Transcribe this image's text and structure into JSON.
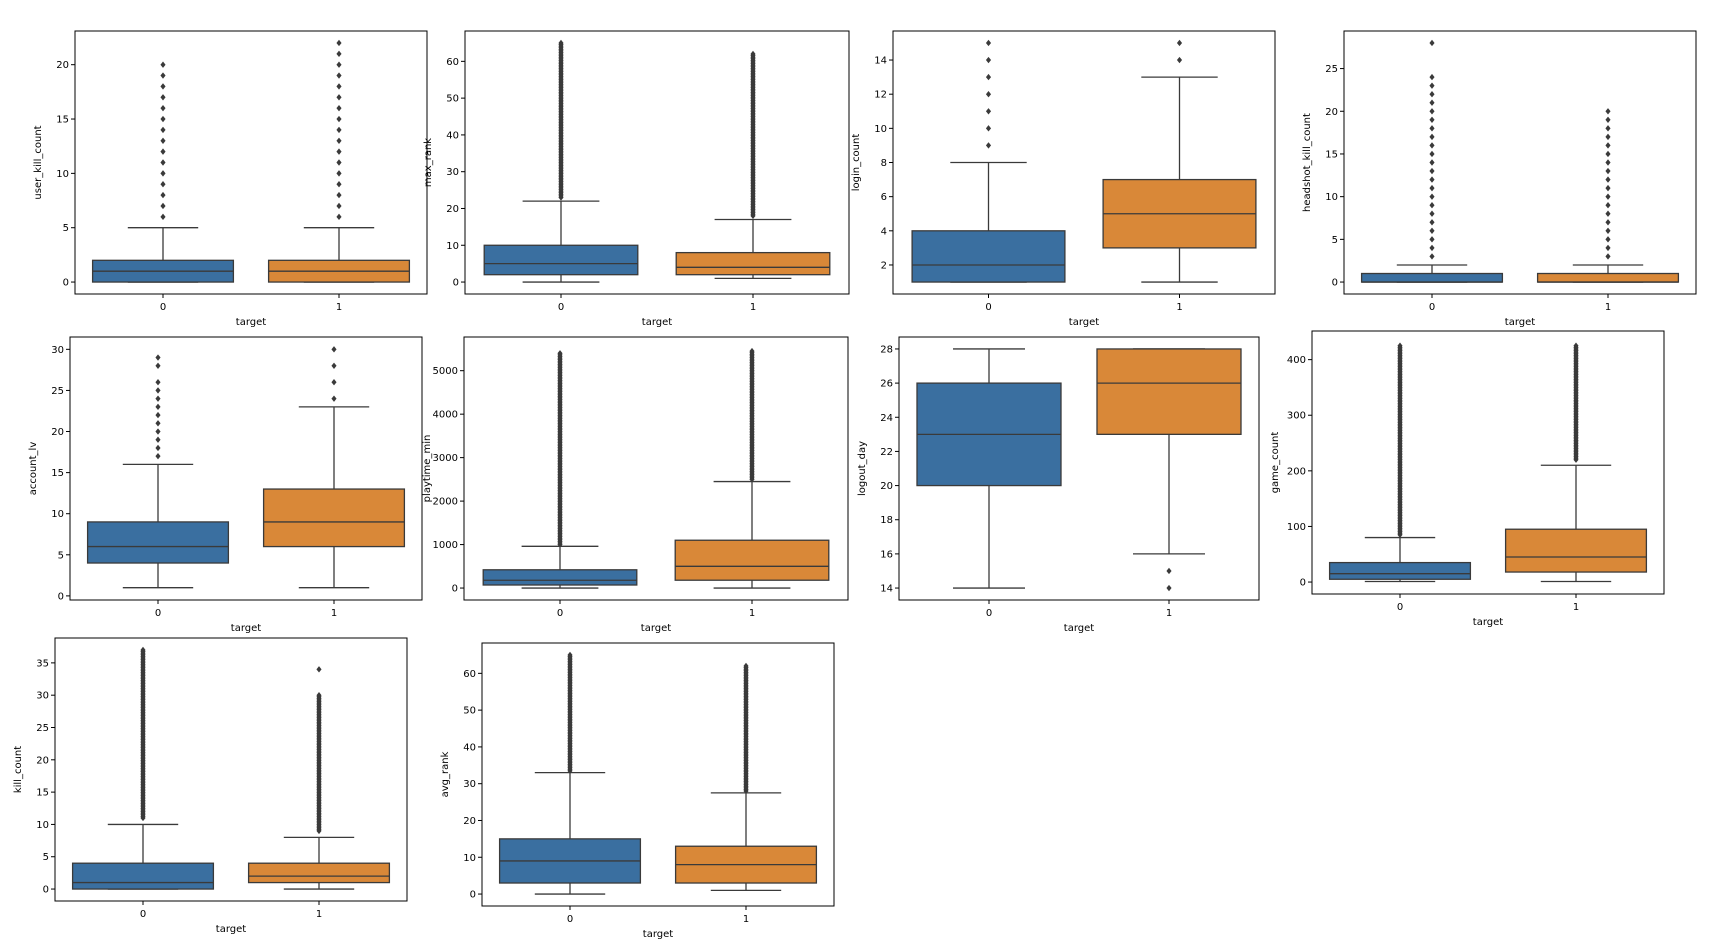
{
  "colors": {
    "group0": "#3a6fa0",
    "group1": "#d98838",
    "line": "#3a3a3a",
    "outlier": "#3a3a3a"
  },
  "chart_data": [
    {
      "type": "boxplot",
      "ylabel": "user_kill_count",
      "xlabel": "target",
      "categories": [
        "0",
        "1"
      ],
      "ylim": [
        -1.1,
        23.1
      ],
      "yticks": [
        0,
        5,
        10,
        15,
        20
      ],
      "boxes": [
        {
          "whisker_low": 0,
          "q1": 0,
          "median": 1,
          "q3": 2,
          "whisker_high": 5,
          "outliers": [
            6,
            7,
            8,
            9,
            10,
            11,
            12,
            13,
            14,
            15,
            16,
            17,
            18,
            19,
            20
          ]
        },
        {
          "whisker_low": 0,
          "q1": 0,
          "median": 1,
          "q3": 2,
          "whisker_high": 5,
          "outliers": [
            6,
            7,
            8,
            9,
            10,
            11,
            12,
            13,
            14,
            15,
            16,
            17,
            18,
            19,
            20,
            21,
            22
          ]
        }
      ]
    },
    {
      "type": "boxplot",
      "ylabel": "max_rank",
      "xlabel": "target",
      "categories": [
        "0",
        "1"
      ],
      "ylim": [
        -3.25,
        68.25
      ],
      "yticks": [
        0,
        10,
        20,
        30,
        40,
        50,
        60
      ],
      "boxes": [
        {
          "whisker_low": 0,
          "q1": 2,
          "median": 5,
          "q3": 10,
          "whisker_high": 22,
          "outliers_range": [
            23,
            65
          ]
        },
        {
          "whisker_low": 1,
          "q1": 2,
          "median": 4,
          "q3": 8,
          "whisker_high": 17,
          "outliers_range": [
            18,
            62
          ]
        }
      ]
    },
    {
      "type": "boxplot",
      "ylabel": "login_count",
      "xlabel": "target",
      "categories": [
        "0",
        "1"
      ],
      "ylim": [
        0.3,
        15.7
      ],
      "yticks": [
        2,
        4,
        6,
        8,
        10,
        12,
        14
      ],
      "boxes": [
        {
          "whisker_low": 1,
          "q1": 1,
          "median": 2,
          "q3": 4,
          "whisker_high": 8,
          "outliers": [
            9,
            10,
            11,
            12,
            13,
            14,
            15
          ]
        },
        {
          "whisker_low": 1,
          "q1": 3,
          "median": 5,
          "q3": 7,
          "whisker_high": 13,
          "outliers": [
            14,
            15
          ]
        }
      ]
    },
    {
      "type": "boxplot",
      "ylabel": "headshot_kill_count",
      "xlabel": "target",
      "categories": [
        "0",
        "1"
      ],
      "ylim": [
        -1.4,
        29.4
      ],
      "yticks": [
        0,
        5,
        10,
        15,
        20,
        25
      ],
      "boxes": [
        {
          "whisker_low": 0,
          "q1": 0,
          "median": 0,
          "q3": 1,
          "whisker_high": 2,
          "outliers": [
            3,
            4,
            5,
            6,
            7,
            8,
            9,
            10,
            11,
            12,
            13,
            14,
            15,
            16,
            17,
            18,
            19,
            20,
            21,
            22,
            23,
            24,
            28
          ]
        },
        {
          "whisker_low": 0,
          "q1": 0,
          "median": 0,
          "q3": 1,
          "whisker_high": 2,
          "outliers": [
            3,
            4,
            5,
            6,
            7,
            8,
            9,
            10,
            11,
            12,
            13,
            14,
            15,
            16,
            17,
            18,
            19,
            20
          ]
        }
      ]
    },
    {
      "type": "boxplot",
      "ylabel": "account_lv",
      "xlabel": "target",
      "categories": [
        "0",
        "1"
      ],
      "ylim": [
        -0.5,
        31.5
      ],
      "yticks": [
        0,
        5,
        10,
        15,
        20,
        25,
        30
      ],
      "boxes": [
        {
          "whisker_low": 1,
          "q1": 4,
          "median": 6,
          "q3": 9,
          "whisker_high": 16,
          "outliers": [
            17,
            18,
            19,
            20,
            21,
            22,
            23,
            24,
            25,
            26,
            28,
            29
          ]
        },
        {
          "whisker_low": 1,
          "q1": 6,
          "median": 9,
          "q3": 13,
          "whisker_high": 23,
          "outliers": [
            24,
            26,
            28,
            30
          ]
        }
      ]
    },
    {
      "type": "boxplot",
      "ylabel": "playtime_min",
      "xlabel": "target",
      "categories": [
        "0",
        "1"
      ],
      "ylim": [
        -275,
        5775
      ],
      "yticks": [
        0,
        1000,
        2000,
        3000,
        4000,
        5000
      ],
      "boxes": [
        {
          "whisker_low": 0,
          "q1": 70,
          "median": 180,
          "q3": 420,
          "whisker_high": 960,
          "outliers_range": [
            1000,
            5400
          ]
        },
        {
          "whisker_low": 0,
          "q1": 180,
          "median": 500,
          "q3": 1100,
          "whisker_high": 2450,
          "outliers_range": [
            2500,
            5450
          ]
        }
      ]
    },
    {
      "type": "boxplot",
      "ylabel": "logout_day",
      "xlabel": "target",
      "categories": [
        "0",
        "1"
      ],
      "ylim": [
        13.3,
        28.7
      ],
      "yticks": [
        14,
        16,
        18,
        20,
        22,
        24,
        26,
        28
      ],
      "boxes": [
        {
          "whisker_low": 14,
          "q1": 20,
          "median": 23,
          "q3": 26,
          "whisker_high": 28,
          "outliers": []
        },
        {
          "whisker_low": 16,
          "q1": 23,
          "median": 26,
          "q3": 28,
          "whisker_high": 28,
          "outliers": [
            14,
            15
          ]
        }
      ]
    },
    {
      "type": "boxplot",
      "ylabel": "game_count",
      "xlabel": "target",
      "categories": [
        "0",
        "1"
      ],
      "ylim": [
        -21.5,
        451.5
      ],
      "yticks": [
        0,
        100,
        200,
        300,
        400
      ],
      "boxes": [
        {
          "whisker_low": 1,
          "q1": 5,
          "median": 15,
          "q3": 35,
          "whisker_high": 80,
          "outliers_range": [
            85,
            425
          ]
        },
        {
          "whisker_low": 1,
          "q1": 18,
          "median": 45,
          "q3": 95,
          "whisker_high": 210,
          "outliers_range": [
            220,
            425
          ]
        }
      ]
    },
    {
      "type": "boxplot",
      "ylabel": "kill_count",
      "xlabel": "target",
      "categories": [
        "0",
        "1"
      ],
      "ylim": [
        -1.85,
        38.85
      ],
      "yticks": [
        0,
        5,
        10,
        15,
        20,
        25,
        30,
        35
      ],
      "boxes": [
        {
          "whisker_low": 0,
          "q1": 0,
          "median": 1,
          "q3": 4,
          "whisker_high": 10,
          "outliers_range": [
            11,
            37
          ]
        },
        {
          "whisker_low": 0,
          "q1": 1,
          "median": 2,
          "q3": 4,
          "whisker_high": 8,
          "outliers_range": [
            9,
            30
          ],
          "outliers": [
            34
          ]
        }
      ]
    },
    {
      "type": "boxplot",
      "ylabel": "avg_rank",
      "xlabel": "target",
      "categories": [
        "0",
        "1"
      ],
      "ylim": [
        -3.25,
        68.25
      ],
      "yticks": [
        0,
        10,
        20,
        30,
        40,
        50,
        60
      ],
      "boxes": [
        {
          "whisker_low": 0,
          "q1": 3,
          "median": 9,
          "q3": 15,
          "whisker_high": 33,
          "outliers_range": [
            33.5,
            65
          ]
        },
        {
          "whisker_low": 1,
          "q1": 3,
          "median": 8,
          "q3": 13,
          "whisker_high": 27.5,
          "outliers_range": [
            28,
            62
          ]
        }
      ]
    }
  ]
}
